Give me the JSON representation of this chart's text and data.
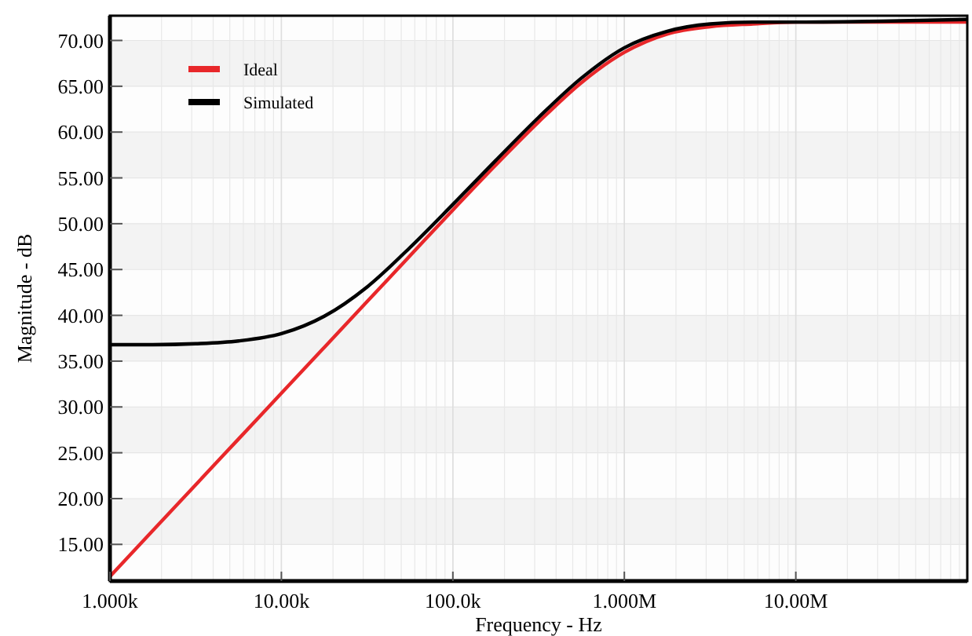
{
  "chart_data": {
    "type": "line",
    "xlabel": "Frequency - Hz",
    "ylabel": "Magnitude - dB",
    "log": "x",
    "grid": true,
    "legend": "top left",
    "line_style": "solid",
    "marker": "none",
    "x": [
      1000,
      1778,
      3162,
      5623,
      10000,
      17783,
      31623,
      56234,
      100000,
      177828,
      316228,
      562341,
      1000000,
      1778279,
      3162278,
      5623413,
      10000000,
      31622777,
      100000000
    ],
    "series": [
      {
        "name": "Ideal",
        "color": "#e8272a",
        "values": [
          11.5,
          16.5,
          21.5,
          26.5,
          31.5,
          36.5,
          41.5,
          46.5,
          51.5,
          56.4,
          61.1,
          65.4,
          68.7,
          70.7,
          71.5,
          71.8,
          72.0,
          72.0,
          72.0
        ]
      },
      {
        "name": "Simulated",
        "color": "#000000",
        "values": [
          36.8,
          36.8,
          36.9,
          37.2,
          38.0,
          39.9,
          43.1,
          47.4,
          52.1,
          56.9,
          61.6,
          65.9,
          69.2,
          71.0,
          71.8,
          72.0,
          72.0,
          72.1,
          72.3
        ]
      }
    ],
    "xlim": [
      1000,
      100000000
    ],
    "ylim": [
      11,
      72.7
    ],
    "xticks": [
      {
        "value": 1000,
        "label": "1.000k"
      },
      {
        "value": 10000,
        "label": "10.00k"
      },
      {
        "value": 100000,
        "label": "100.0k"
      },
      {
        "value": 1000000,
        "label": "1.000M"
      },
      {
        "value": 10000000,
        "label": "10.00M"
      }
    ],
    "yticks": [
      {
        "value": 15,
        "label": "15.00"
      },
      {
        "value": 20,
        "label": "20.00"
      },
      {
        "value": 25,
        "label": "25.00"
      },
      {
        "value": 30,
        "label": "30.00"
      },
      {
        "value": 35,
        "label": "35.00"
      },
      {
        "value": 40,
        "label": "40.00"
      },
      {
        "value": 45,
        "label": "45.00"
      },
      {
        "value": 50,
        "label": "50.00"
      },
      {
        "value": 55,
        "label": "55.00"
      },
      {
        "value": 60,
        "label": "60.00"
      },
      {
        "value": 65,
        "label": "65.00"
      },
      {
        "value": 70,
        "label": "70.00"
      }
    ]
  }
}
